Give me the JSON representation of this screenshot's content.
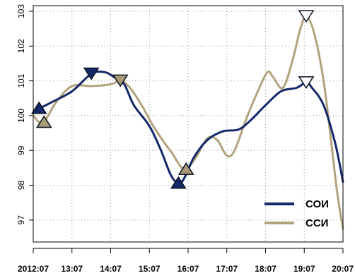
{
  "chart_data": {
    "type": "line",
    "title": "",
    "xlabel": "",
    "ylabel": "",
    "x_tick_labels": [
      "2012:07",
      "13:07",
      "14:07",
      "15:07",
      "16:07",
      "17:07",
      "18:07",
      "19:07",
      "20:07"
    ],
    "x_range": [
      0,
      8
    ],
    "ylim": [
      96.3,
      103
    ],
    "y_ticks": [
      97,
      98,
      99,
      100,
      101,
      102,
      103
    ],
    "grid": true,
    "legend_position": "bottom-right",
    "series": [
      {
        "name": "СОИ",
        "color": "#14286a",
        "points": [
          [
            0.15,
            100.2
          ],
          [
            0.5,
            100.4
          ],
          [
            1.0,
            100.7
          ],
          [
            1.5,
            101.2
          ],
          [
            1.85,
            101.25
          ],
          [
            2.1,
            101.1
          ],
          [
            2.35,
            100.9
          ],
          [
            2.6,
            100.3
          ],
          [
            3.0,
            99.7
          ],
          [
            3.3,
            99.0
          ],
          [
            3.55,
            98.3
          ],
          [
            3.75,
            98.05
          ],
          [
            3.9,
            98.2
          ],
          [
            4.15,
            98.8
          ],
          [
            4.5,
            99.3
          ],
          [
            4.9,
            99.55
          ],
          [
            5.3,
            99.6
          ],
          [
            5.6,
            99.85
          ],
          [
            6.0,
            100.3
          ],
          [
            6.4,
            100.7
          ],
          [
            6.8,
            100.8
          ],
          [
            7.05,
            100.95
          ],
          [
            7.2,
            100.8
          ],
          [
            7.5,
            100.3
          ],
          [
            7.8,
            99.2
          ],
          [
            8.0,
            98.1
          ]
        ]
      },
      {
        "name": "ССИ",
        "color": "#b2a37c",
        "points": [
          [
            0.0,
            100.0
          ],
          [
            0.25,
            99.8
          ],
          [
            0.6,
            100.4
          ],
          [
            1.0,
            100.85
          ],
          [
            1.5,
            100.85
          ],
          [
            2.0,
            100.9
          ],
          [
            2.25,
            101.0
          ],
          [
            2.5,
            100.8
          ],
          [
            2.8,
            100.3
          ],
          [
            3.1,
            99.7
          ],
          [
            3.4,
            99.2
          ],
          [
            3.6,
            98.9
          ],
          [
            3.8,
            98.55
          ],
          [
            3.95,
            98.45
          ],
          [
            4.2,
            98.8
          ],
          [
            4.5,
            99.35
          ],
          [
            4.75,
            99.3
          ],
          [
            5.0,
            98.85
          ],
          [
            5.2,
            99.0
          ],
          [
            5.5,
            99.9
          ],
          [
            5.8,
            100.7
          ],
          [
            6.05,
            101.25
          ],
          [
            6.2,
            101.1
          ],
          [
            6.45,
            100.8
          ],
          [
            6.7,
            101.6
          ],
          [
            6.9,
            102.5
          ],
          [
            7.05,
            102.85
          ],
          [
            7.25,
            102.4
          ],
          [
            7.5,
            101.0
          ],
          [
            7.7,
            99.2
          ],
          [
            7.85,
            97.8
          ],
          [
            8.0,
            96.75
          ]
        ]
      }
    ],
    "markers": [
      {
        "x": 0.15,
        "y": 100.2,
        "shape": "triangle-up",
        "fill": "#14286a",
        "stroke": "#0a1020"
      },
      {
        "x": 0.28,
        "y": 99.8,
        "shape": "triangle-up",
        "fill": "#a89a76",
        "stroke": "#0a1020"
      },
      {
        "x": 1.5,
        "y": 101.2,
        "shape": "triangle-down",
        "fill": "#14286a",
        "stroke": "#0a1020"
      },
      {
        "x": 2.25,
        "y": 101.0,
        "shape": "triangle-down",
        "fill": "#a89a76",
        "stroke": "#0a1020"
      },
      {
        "x": 3.75,
        "y": 98.05,
        "shape": "triangle-up",
        "fill": "#14286a",
        "stroke": "#0a1020"
      },
      {
        "x": 3.95,
        "y": 98.45,
        "shape": "triangle-up",
        "fill": "#a89a76",
        "stroke": "#0a1020"
      },
      {
        "x": 7.05,
        "y": 100.95,
        "shape": "triangle-down",
        "fill": "#ffffff",
        "stroke": "#0a1020"
      },
      {
        "x": 7.05,
        "y": 102.85,
        "shape": "triangle-down",
        "fill": "#ffffff",
        "stroke": "#0a1020"
      }
    ]
  }
}
